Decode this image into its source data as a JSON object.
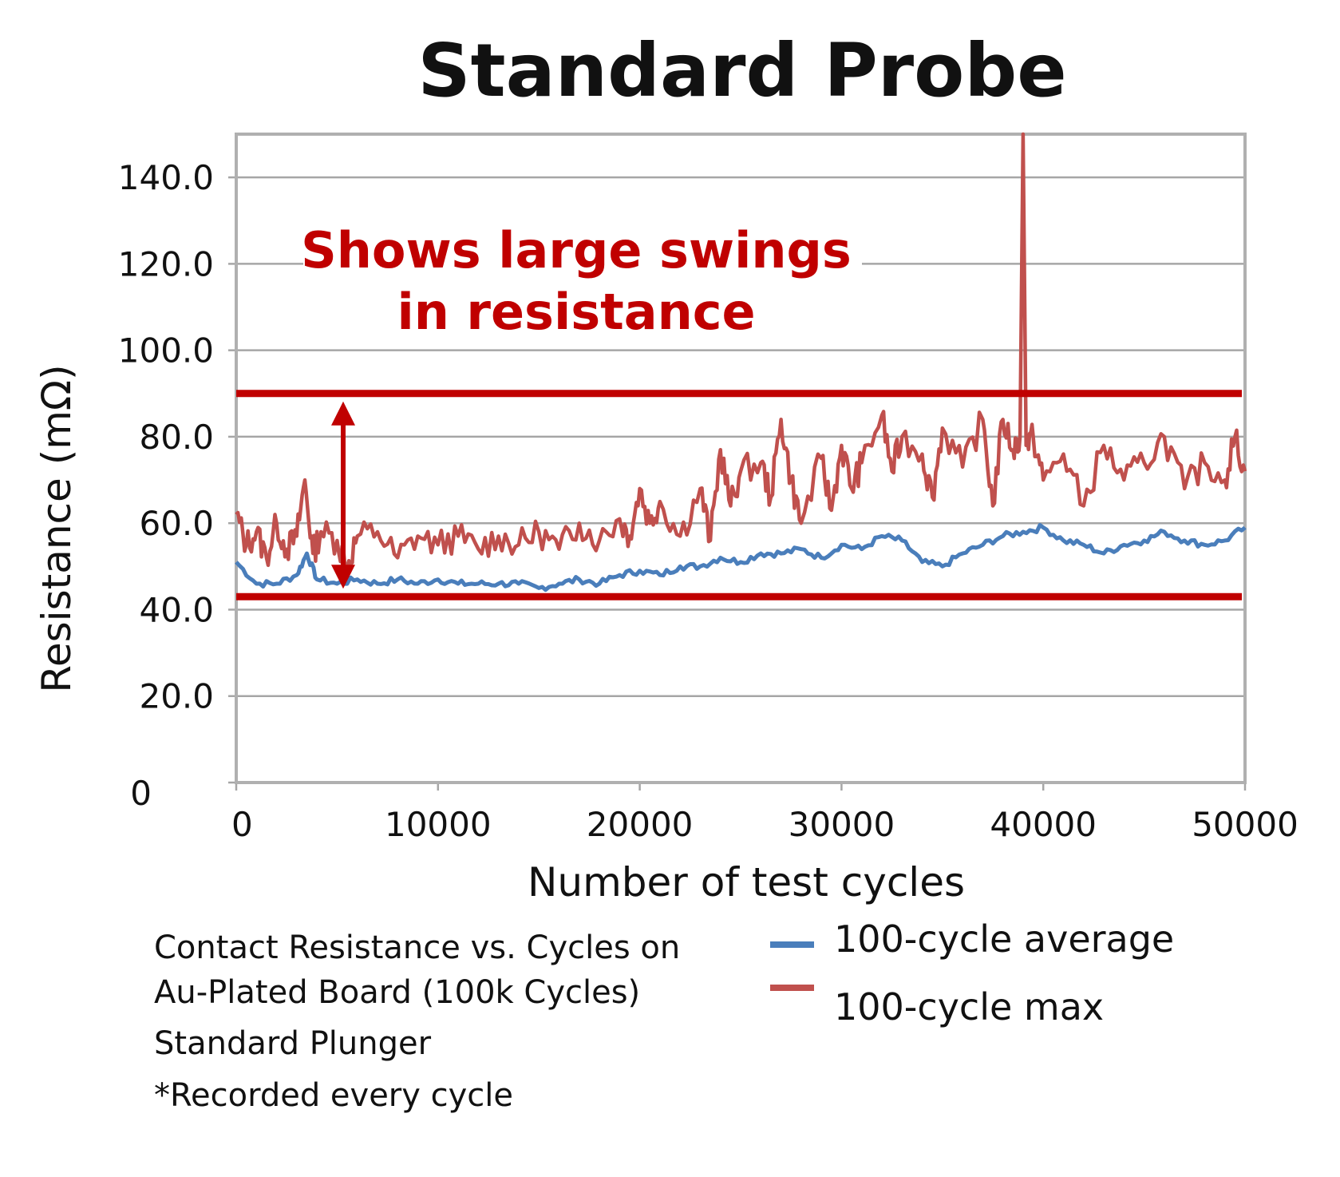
{
  "chart_data": {
    "type": "line",
    "title": "Standard Probe",
    "xlabel": "Number of test cycles",
    "ylabel": "Resistance (mΩ)",
    "xlim": [
      0,
      50000
    ],
    "ylim": [
      0,
      150
    ],
    "x_ticks": [
      "0",
      "10000",
      "20000",
      "30000",
      "40000",
      "50000"
    ],
    "y_ticks": [
      "0",
      "20.0",
      "40.0",
      "60.0",
      "80.0",
      "100.0",
      "120.0",
      "140.0"
    ],
    "grid": true,
    "legend_position": "bottom-right",
    "series": [
      {
        "name": "100-cycle average",
        "color": "#4a7ebb",
        "x": [
          0,
          1000,
          2000,
          3000,
          3500,
          4000,
          5000,
          6000,
          7000,
          8000,
          9000,
          10000,
          11000,
          12000,
          13000,
          14000,
          15000,
          16000,
          17000,
          18000,
          19000,
          20000,
          21000,
          22000,
          23000,
          24000,
          25000,
          26000,
          27000,
          28000,
          29000,
          30000,
          31000,
          32000,
          33000,
          34000,
          35000,
          36000,
          37000,
          38000,
          39000,
          40000,
          41000,
          42000,
          43000,
          44000,
          45000,
          46000,
          47000,
          48000,
          49000,
          50000
        ],
        "values": [
          51,
          46,
          46,
          48,
          53,
          47,
          46,
          47,
          46,
          47,
          46,
          47,
          46,
          46,
          46,
          46,
          45,
          46,
          47,
          46,
          48,
          49,
          48,
          50,
          50,
          52,
          51,
          53,
          53,
          54,
          52,
          55,
          54,
          57,
          56,
          51,
          50,
          53,
          55,
          57,
          58,
          59,
          56,
          55,
          53,
          55,
          56,
          58,
          56,
          55,
          56,
          59
        ]
      },
      {
        "name": "100-cycle max",
        "color": "#c0504d",
        "x": [
          0,
          500,
          1000,
          1500,
          2000,
          2500,
          3000,
          3400,
          3800,
          4200,
          5000,
          5500,
          6000,
          7000,
          8000,
          9000,
          10000,
          11000,
          12000,
          13000,
          14000,
          15000,
          16000,
          17000,
          18000,
          19000,
          19500,
          20000,
          20500,
          21000,
          22000,
          23000,
          23500,
          24000,
          24500,
          25000,
          26000,
          26500,
          27000,
          27500,
          28000,
          29000,
          29500,
          30000,
          30500,
          31000,
          32000,
          32500,
          33000,
          34000,
          34500,
          35000,
          36000,
          37000,
          37500,
          38000,
          38500,
          38850,
          39000,
          39150,
          39500,
          40000,
          41000,
          42000,
          43000,
          44000,
          45000,
          46000,
          47000,
          48000,
          49000,
          49500,
          50000
        ],
        "values": [
          62,
          55,
          58,
          52,
          60,
          54,
          57,
          70,
          53,
          58,
          56,
          50,
          57,
          58,
          52,
          57,
          55,
          57,
          54,
          57,
          55,
          58,
          54,
          60,
          56,
          61,
          57,
          68,
          60,
          65,
          57,
          68,
          56,
          77,
          64,
          72,
          74,
          66,
          84,
          70,
          60,
          75,
          63,
          78,
          68,
          74,
          85,
          72,
          80,
          76,
          66,
          82,
          73,
          84,
          64,
          84,
          77,
          80,
          150,
          78,
          80,
          70,
          76,
          64,
          78,
          70,
          74,
          80,
          68,
          74,
          70,
          80,
          72
        ],
        "peak_note": "spike to above chart top near 39000 cycles"
      }
    ],
    "annotations": {
      "text_line1": "Shows large swings",
      "text_line2": "in resistance",
      "upper_band": 90,
      "lower_band": 43,
      "color": "#c00000"
    }
  },
  "caption": {
    "line1": "Contact Resistance vs. Cycles on",
    "line2": "Au-Plated Board (100k Cycles)",
    "line3": "Standard Plunger",
    "line4": "*Recorded every cycle"
  }
}
